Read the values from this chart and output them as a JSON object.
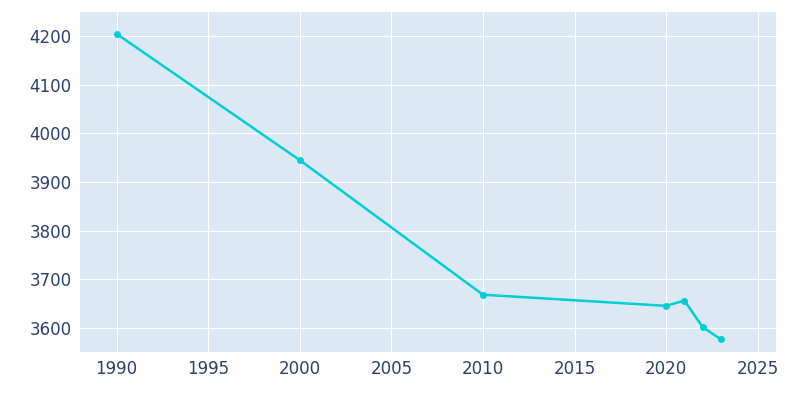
{
  "years": [
    1990,
    2000,
    2010,
    2020,
    2021,
    2022,
    2023
  ],
  "population": [
    4205,
    3945,
    3668,
    3645,
    3656,
    3601,
    3576
  ],
  "line_color": "#00CED1",
  "marker_color": "#00CED1",
  "background_color": "#dce9f5",
  "figure_facecolor": "#ffffff",
  "xlim": [
    1988,
    2026
  ],
  "ylim": [
    3550,
    4250
  ],
  "yticks": [
    3600,
    3700,
    3800,
    3900,
    4000,
    4100,
    4200
  ],
  "xticks": [
    1990,
    1995,
    2000,
    2005,
    2010,
    2015,
    2020,
    2025
  ],
  "grid_color": "#ffffff",
  "tick_color": "#2d3f6b",
  "linewidth": 1.8,
  "markersize": 4,
  "tick_labelsize": 12
}
